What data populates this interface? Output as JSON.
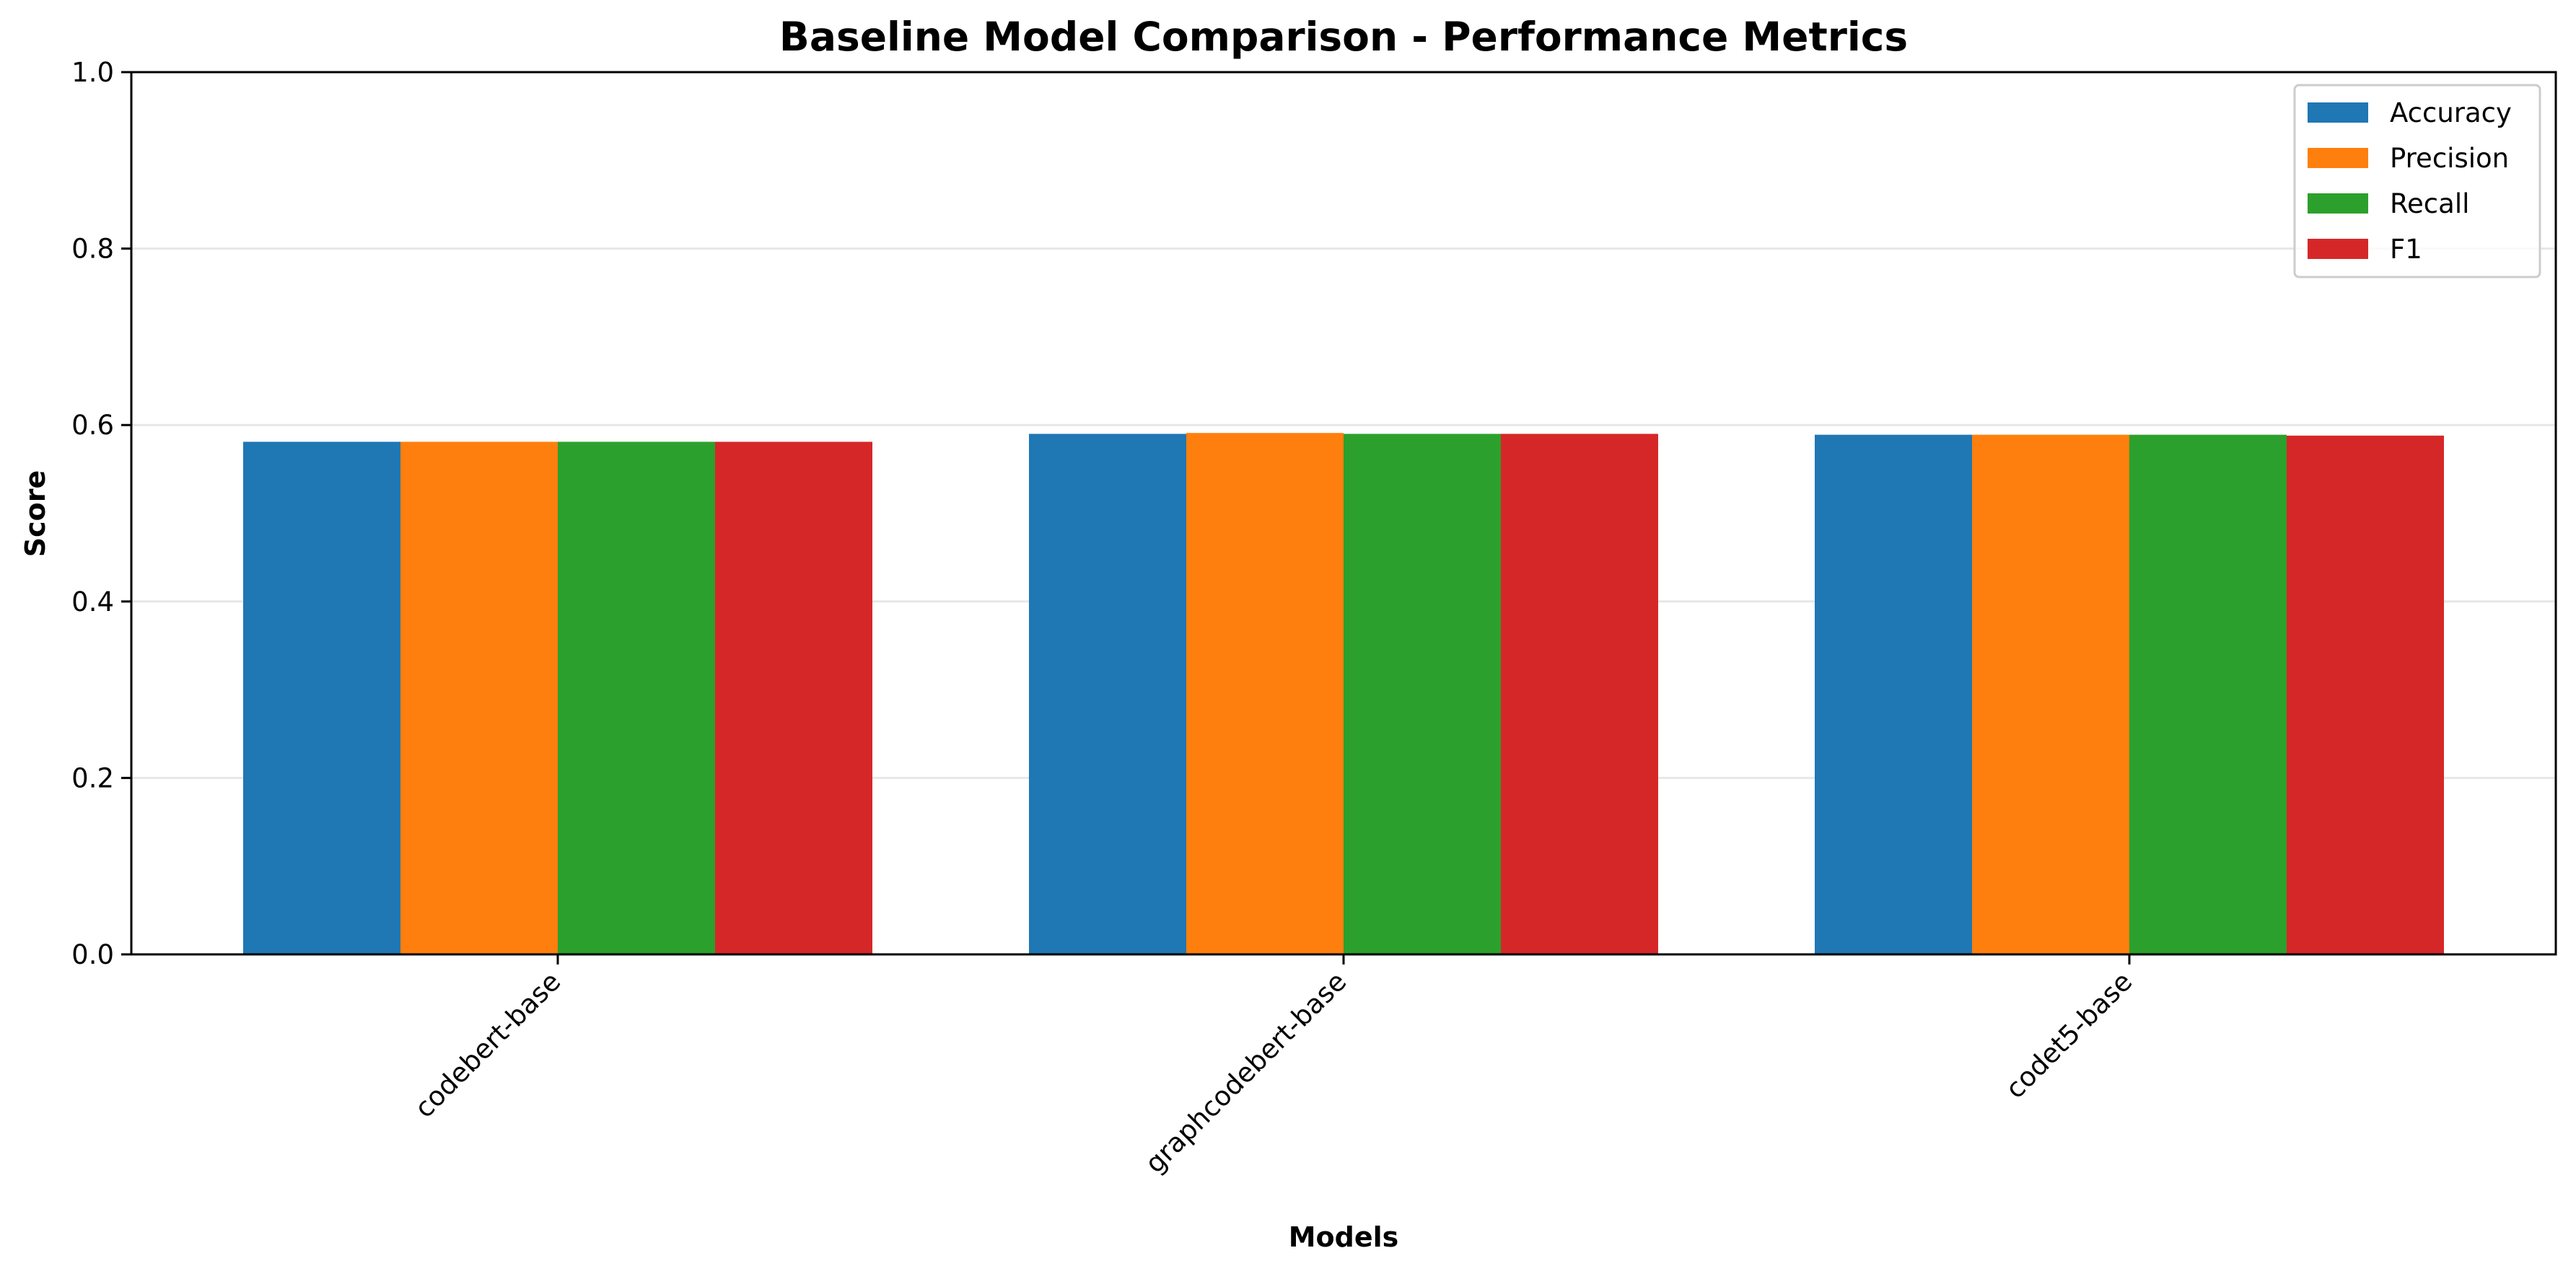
{
  "chart_data": {
    "type": "bar",
    "title": "Baseline Model Comparison - Performance Metrics",
    "xlabel": "Models",
    "ylabel": "Score",
    "ylim": [
      0,
      1.0
    ],
    "yticks": [
      "0.0",
      "0.2",
      "0.4",
      "0.6",
      "0.8",
      "1.0"
    ],
    "categories": [
      "codebert-base",
      "graphcodebert-base",
      "codet5-base"
    ],
    "series": [
      {
        "name": "Accuracy",
        "color": "#1f77b4",
        "values": [
          0.581,
          0.59,
          0.589
        ]
      },
      {
        "name": "Precision",
        "color": "#ff7f0e",
        "values": [
          0.581,
          0.591,
          0.589
        ]
      },
      {
        "name": "Recall",
        "color": "#2ca02c",
        "values": [
          0.581,
          0.59,
          0.589
        ]
      },
      {
        "name": "F1",
        "color": "#d62728",
        "values": [
          0.581,
          0.59,
          0.588
        ]
      }
    ],
    "grid": "y-major",
    "legend": "top-right"
  }
}
